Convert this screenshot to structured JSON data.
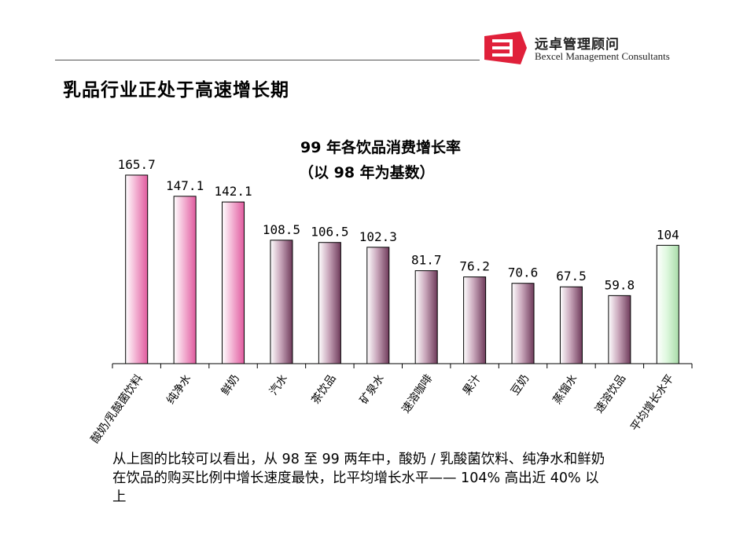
{
  "header": {
    "logo": {
      "name_cn": "远卓管理顾问",
      "name_en": "Bexcel Management Consultants",
      "brand_color": "#e0203a"
    },
    "page_title": "乳品行业正处于高速增长期"
  },
  "chart_data": {
    "type": "bar",
    "title": "99 年各饮品消费增长率",
    "subtitle": "（以 98 年为基数）",
    "categories": [
      "酸奶/乳酸菌饮料",
      "纯净水",
      "鲜奶",
      "汽水",
      "茶饮品",
      "矿泉水",
      "速溶咖啡",
      "果汁",
      "豆奶",
      "蒸馏水",
      "速溶饮品",
      "平均增长水平"
    ],
    "values": [
      165.7,
      147.1,
      142.1,
      108.5,
      106.5,
      102.3,
      81.7,
      76.2,
      70.6,
      67.5,
      59.8,
      104
    ],
    "value_labels": [
      "165.7",
      "147.1",
      "142.1",
      "108.5",
      "106.5",
      "102.3",
      "81.7",
      "76.2",
      "70.6",
      "67.5",
      "59.8",
      "104"
    ],
    "bar_styles": [
      "pink",
      "pink",
      "pink",
      "mauve",
      "mauve",
      "mauve",
      "mauve",
      "mauve",
      "mauve",
      "mauve",
      "mauve",
      "green"
    ],
    "colors": {
      "pink": [
        "#ffffff",
        "#f3b4d4",
        "#e05a9e"
      ],
      "mauve": [
        "#ffffff",
        "#caa8bc",
        "#6e3a5a"
      ],
      "green": [
        "#ffffff",
        "#dff8df",
        "#a8dca8"
      ]
    },
    "ylim": [
      0,
      185
    ],
    "grid": false,
    "legend": "none"
  },
  "note": {
    "lines": [
      "从上图的比较可以看出，从 98 至 99 两年中，酸奶 / 乳酸菌饮料、纯净水和鲜奶",
      "在饮品的购买比例中增长速度最快，比平均增长水平—— 104% 高出近 40% 以",
      "上"
    ]
  }
}
